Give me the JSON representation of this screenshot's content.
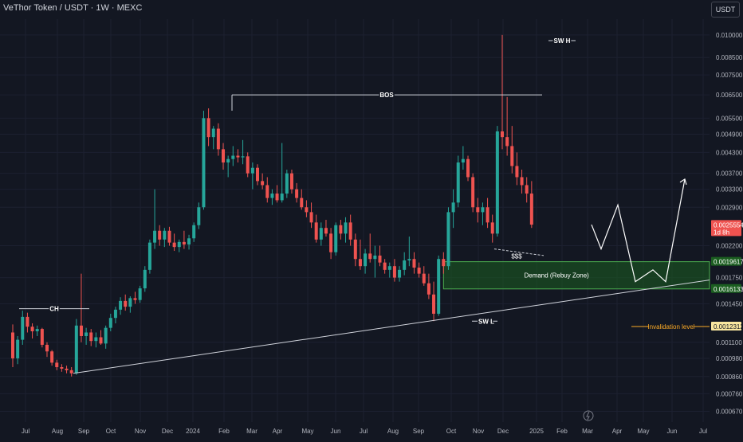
{
  "header": {
    "title": "VeThor Token / USDT · 1W · MEXC",
    "currency_button": "USDT"
  },
  "colors": {
    "background": "#131722",
    "up": "#26a69a",
    "down": "#ef5350",
    "demand_zone": "#1b5e20",
    "axis_text": "#b2b5be"
  },
  "y_axis": {
    "scale": "log",
    "ticks": [
      "0.010000",
      "0.008500",
      "0.007500",
      "0.006500",
      "0.005500",
      "0.004900",
      "0.004300",
      "0.003700",
      "0.003300",
      "0.002900",
      "0.002200",
      "0.001750",
      "0.001450",
      "0.001100",
      "0.000980",
      "0.000860",
      "0.000760",
      "0.000670"
    ]
  },
  "x_axis": {
    "ticks": [
      "Jul",
      "Aug",
      "Sep",
      "Oct",
      "Nov",
      "Dec",
      "2024",
      "Feb",
      "Mar",
      "Apr",
      "May",
      "Jun",
      "Jul",
      "Aug",
      "Sep",
      "Oct",
      "Nov",
      "Dec",
      "2025",
      "Feb",
      "Mar",
      "Apr",
      "May",
      "Jun",
      "Jul"
    ]
  },
  "price_labels": {
    "last_price": "0.0025554",
    "countdown": "1d 8h",
    "demand_top": "0.0019617",
    "demand_bottom": "0.0016133",
    "invalidation": "0.0012312"
  },
  "annotations": {
    "ch": "CH",
    "bos": "BOS",
    "sw_h": "SW H",
    "sw_l": "SW L",
    "liquidity": "$$$",
    "demand_zone": "Demand (Rebuy Zone)",
    "invalidation": "Invalidation level"
  },
  "chart_data": {
    "type": "candlestick",
    "price_scale": "log",
    "candles": [
      {
        "o": 0.00118,
        "h": 0.00125,
        "l": 0.00092,
        "c": 0.00098
      },
      {
        "o": 0.00098,
        "h": 0.00115,
        "l": 0.00094,
        "c": 0.00112
      },
      {
        "o": 0.00112,
        "h": 0.00138,
        "l": 0.00108,
        "c": 0.00132
      },
      {
        "o": 0.00132,
        "h": 0.00136,
        "l": 0.00118,
        "c": 0.00123
      },
      {
        "o": 0.00123,
        "h": 0.00126,
        "l": 0.00113,
        "c": 0.00119
      },
      {
        "o": 0.00119,
        "h": 0.00124,
        "l": 0.00115,
        "c": 0.00121
      },
      {
        "o": 0.00121,
        "h": 0.00122,
        "l": 0.00106,
        "c": 0.00108
      },
      {
        "o": 0.00108,
        "h": 0.0011,
        "l": 0.00099,
        "c": 0.00103
      },
      {
        "o": 0.00103,
        "h": 0.00104,
        "l": 0.00093,
        "c": 0.00095
      },
      {
        "o": 0.00095,
        "h": 0.00097,
        "l": 0.0009,
        "c": 0.00092
      },
      {
        "o": 0.00092,
        "h": 0.00094,
        "l": 0.00089,
        "c": 0.00091
      },
      {
        "o": 0.00091,
        "h": 0.00093,
        "l": 0.00088,
        "c": 0.0009
      },
      {
        "o": 0.0009,
        "h": 0.00092,
        "l": 0.00086,
        "c": 0.00088
      },
      {
        "o": 0.00088,
        "h": 0.0013,
        "l": 0.00087,
        "c": 0.00124
      },
      {
        "o": 0.00124,
        "h": 0.0018,
        "l": 0.0011,
        "c": 0.00115
      },
      {
        "o": 0.00115,
        "h": 0.00122,
        "l": 0.00108,
        "c": 0.00118
      },
      {
        "o": 0.00118,
        "h": 0.00121,
        "l": 0.00107,
        "c": 0.00111
      },
      {
        "o": 0.00111,
        "h": 0.00118,
        "l": 0.00106,
        "c": 0.00114
      },
      {
        "o": 0.00114,
        "h": 0.0012,
        "l": 0.00108,
        "c": 0.00109
      },
      {
        "o": 0.00109,
        "h": 0.00124,
        "l": 0.00105,
        "c": 0.00122
      },
      {
        "o": 0.00122,
        "h": 0.00135,
        "l": 0.00119,
        "c": 0.00131
      },
      {
        "o": 0.00131,
        "h": 0.00142,
        "l": 0.00126,
        "c": 0.00139
      },
      {
        "o": 0.00139,
        "h": 0.00152,
        "l": 0.00134,
        "c": 0.00148
      },
      {
        "o": 0.00148,
        "h": 0.00155,
        "l": 0.00138,
        "c": 0.00142
      },
      {
        "o": 0.00142,
        "h": 0.00153,
        "l": 0.00136,
        "c": 0.00151
      },
      {
        "o": 0.00151,
        "h": 0.00158,
        "l": 0.00145,
        "c": 0.00149
      },
      {
        "o": 0.00149,
        "h": 0.00165,
        "l": 0.00146,
        "c": 0.00162
      },
      {
        "o": 0.00162,
        "h": 0.0019,
        "l": 0.00158,
        "c": 0.00185
      },
      {
        "o": 0.00185,
        "h": 0.0023,
        "l": 0.0018,
        "c": 0.00225
      },
      {
        "o": 0.00225,
        "h": 0.0033,
        "l": 0.00215,
        "c": 0.00245
      },
      {
        "o": 0.00245,
        "h": 0.00255,
        "l": 0.0022,
        "c": 0.0023
      },
      {
        "o": 0.0023,
        "h": 0.0025,
        "l": 0.00218,
        "c": 0.00245
      },
      {
        "o": 0.00245,
        "h": 0.00252,
        "l": 0.0022,
        "c": 0.00225
      },
      {
        "o": 0.00225,
        "h": 0.0024,
        "l": 0.00212,
        "c": 0.00218
      },
      {
        "o": 0.00218,
        "h": 0.0023,
        "l": 0.0021,
        "c": 0.00226
      },
      {
        "o": 0.00226,
        "h": 0.00245,
        "l": 0.00215,
        "c": 0.00222
      },
      {
        "o": 0.00222,
        "h": 0.00238,
        "l": 0.00214,
        "c": 0.00232
      },
      {
        "o": 0.00232,
        "h": 0.0026,
        "l": 0.00226,
        "c": 0.00255
      },
      {
        "o": 0.00255,
        "h": 0.003,
        "l": 0.00248,
        "c": 0.0029
      },
      {
        "o": 0.0029,
        "h": 0.0058,
        "l": 0.00285,
        "c": 0.0055
      },
      {
        "o": 0.0055,
        "h": 0.0059,
        "l": 0.0045,
        "c": 0.0048
      },
      {
        "o": 0.0048,
        "h": 0.0052,
        "l": 0.0044,
        "c": 0.0051
      },
      {
        "o": 0.0051,
        "h": 0.0053,
        "l": 0.0042,
        "c": 0.0044
      },
      {
        "o": 0.0044,
        "h": 0.0046,
        "l": 0.0038,
        "c": 0.004
      },
      {
        "o": 0.004,
        "h": 0.0042,
        "l": 0.0036,
        "c": 0.0041
      },
      {
        "o": 0.0041,
        "h": 0.0045,
        "l": 0.0039,
        "c": 0.0042
      },
      {
        "o": 0.0042,
        "h": 0.0044,
        "l": 0.004,
        "c": 0.00415
      },
      {
        "o": 0.00415,
        "h": 0.0047,
        "l": 0.00395,
        "c": 0.00418
      },
      {
        "o": 0.00418,
        "h": 0.0043,
        "l": 0.0036,
        "c": 0.0037
      },
      {
        "o": 0.0037,
        "h": 0.004,
        "l": 0.0033,
        "c": 0.00385
      },
      {
        "o": 0.00385,
        "h": 0.00395,
        "l": 0.0034,
        "c": 0.0035
      },
      {
        "o": 0.0035,
        "h": 0.0037,
        "l": 0.0033,
        "c": 0.0034
      },
      {
        "o": 0.0034,
        "h": 0.0036,
        "l": 0.003,
        "c": 0.0031
      },
      {
        "o": 0.0031,
        "h": 0.0033,
        "l": 0.00295,
        "c": 0.0032
      },
      {
        "o": 0.0032,
        "h": 0.0034,
        "l": 0.003,
        "c": 0.00305
      },
      {
        "o": 0.00305,
        "h": 0.0046,
        "l": 0.003,
        "c": 0.0032
      },
      {
        "o": 0.0032,
        "h": 0.0038,
        "l": 0.0031,
        "c": 0.0037
      },
      {
        "o": 0.0037,
        "h": 0.0038,
        "l": 0.0032,
        "c": 0.0033
      },
      {
        "o": 0.0033,
        "h": 0.00345,
        "l": 0.003,
        "c": 0.0031
      },
      {
        "o": 0.0031,
        "h": 0.0033,
        "l": 0.00285,
        "c": 0.0029
      },
      {
        "o": 0.0029,
        "h": 0.00305,
        "l": 0.0027,
        "c": 0.0028
      },
      {
        "o": 0.0028,
        "h": 0.003,
        "l": 0.0025,
        "c": 0.0026
      },
      {
        "o": 0.0026,
        "h": 0.00275,
        "l": 0.00225,
        "c": 0.0023
      },
      {
        "o": 0.0023,
        "h": 0.0026,
        "l": 0.0022,
        "c": 0.0025
      },
      {
        "o": 0.0025,
        "h": 0.00265,
        "l": 0.00235,
        "c": 0.0024
      },
      {
        "o": 0.0024,
        "h": 0.0025,
        "l": 0.002,
        "c": 0.0021
      },
      {
        "o": 0.0021,
        "h": 0.0026,
        "l": 0.00205,
        "c": 0.00255
      },
      {
        "o": 0.00255,
        "h": 0.00265,
        "l": 0.0023,
        "c": 0.0024
      },
      {
        "o": 0.0024,
        "h": 0.0027,
        "l": 0.00225,
        "c": 0.0026
      },
      {
        "o": 0.0026,
        "h": 0.00275,
        "l": 0.0022,
        "c": 0.0023
      },
      {
        "o": 0.0023,
        "h": 0.0024,
        "l": 0.0019,
        "c": 0.002
      },
      {
        "o": 0.002,
        "h": 0.0023,
        "l": 0.00185,
        "c": 0.0019
      },
      {
        "o": 0.0019,
        "h": 0.00215,
        "l": 0.0018,
        "c": 0.00208
      },
      {
        "o": 0.00208,
        "h": 0.0024,
        "l": 0.00195,
        "c": 0.002
      },
      {
        "o": 0.002,
        "h": 0.0022,
        "l": 0.00175,
        "c": 0.00205
      },
      {
        "o": 0.00205,
        "h": 0.0022,
        "l": 0.0019,
        "c": 0.00195
      },
      {
        "o": 0.00195,
        "h": 0.002,
        "l": 0.0018,
        "c": 0.00185
      },
      {
        "o": 0.00185,
        "h": 0.00195,
        "l": 0.00175,
        "c": 0.0019
      },
      {
        "o": 0.0019,
        "h": 0.002,
        "l": 0.0017,
        "c": 0.00175
      },
      {
        "o": 0.00175,
        "h": 0.0019,
        "l": 0.0017,
        "c": 0.00185
      },
      {
        "o": 0.00185,
        "h": 0.0021,
        "l": 0.00178,
        "c": 0.00198
      },
      {
        "o": 0.00198,
        "h": 0.00235,
        "l": 0.0019,
        "c": 0.002
      },
      {
        "o": 0.002,
        "h": 0.0021,
        "l": 0.0018,
        "c": 0.00188
      },
      {
        "o": 0.00188,
        "h": 0.00195,
        "l": 0.00175,
        "c": 0.0018
      },
      {
        "o": 0.0018,
        "h": 0.0019,
        "l": 0.00165,
        "c": 0.00168
      },
      {
        "o": 0.00168,
        "h": 0.0018,
        "l": 0.0015,
        "c": 0.00155
      },
      {
        "o": 0.00155,
        "h": 0.0017,
        "l": 0.00128,
        "c": 0.00135
      },
      {
        "o": 0.00135,
        "h": 0.00205,
        "l": 0.00133,
        "c": 0.002
      },
      {
        "o": 0.002,
        "h": 0.0021,
        "l": 0.0018,
        "c": 0.0019
      },
      {
        "o": 0.0019,
        "h": 0.0029,
        "l": 0.00185,
        "c": 0.0028
      },
      {
        "o": 0.0028,
        "h": 0.0033,
        "l": 0.0025,
        "c": 0.003
      },
      {
        "o": 0.003,
        "h": 0.0042,
        "l": 0.0029,
        "c": 0.004
      },
      {
        "o": 0.004,
        "h": 0.0045,
        "l": 0.0038,
        "c": 0.0041
      },
      {
        "o": 0.0041,
        "h": 0.0042,
        "l": 0.0035,
        "c": 0.0036
      },
      {
        "o": 0.0036,
        "h": 0.0037,
        "l": 0.0028,
        "c": 0.0029
      },
      {
        "o": 0.0029,
        "h": 0.0031,
        "l": 0.0026,
        "c": 0.0028
      },
      {
        "o": 0.0028,
        "h": 0.003,
        "l": 0.00255,
        "c": 0.0029
      },
      {
        "o": 0.0029,
        "h": 0.0031,
        "l": 0.0025,
        "c": 0.0026
      },
      {
        "o": 0.0026,
        "h": 0.00275,
        "l": 0.00225,
        "c": 0.0024
      },
      {
        "o": 0.0024,
        "h": 0.0052,
        "l": 0.00235,
        "c": 0.005
      },
      {
        "o": 0.005,
        "h": 0.01,
        "l": 0.0044,
        "c": 0.0048
      },
      {
        "o": 0.0048,
        "h": 0.0064,
        "l": 0.0042,
        "c": 0.0045
      },
      {
        "o": 0.0045,
        "h": 0.0052,
        "l": 0.0037,
        "c": 0.0039
      },
      {
        "o": 0.0039,
        "h": 0.0043,
        "l": 0.0034,
        "c": 0.0036
      },
      {
        "o": 0.0036,
        "h": 0.0038,
        "l": 0.0032,
        "c": 0.0034
      },
      {
        "o": 0.0034,
        "h": 0.0036,
        "l": 0.003,
        "c": 0.0032
      },
      {
        "o": 0.0032,
        "h": 0.0035,
        "l": 0.0025,
        "c": 0.00256
      }
    ],
    "projected_path": [
      0.00256,
      0.00215,
      0.00295,
      0.0017,
      0.00185,
      0.0017,
      0.00355
    ],
    "trendline": {
      "start_price": 0.00088,
      "end_price": 0.00172
    },
    "levels": {
      "bos": 0.0065,
      "ch": 0.0014,
      "sw_h": 0.0096,
      "demand_top": 0.0019617,
      "demand_bottom": 0.0016133,
      "invalidation": 0.0012312,
      "last": 0.0025554
    }
  }
}
